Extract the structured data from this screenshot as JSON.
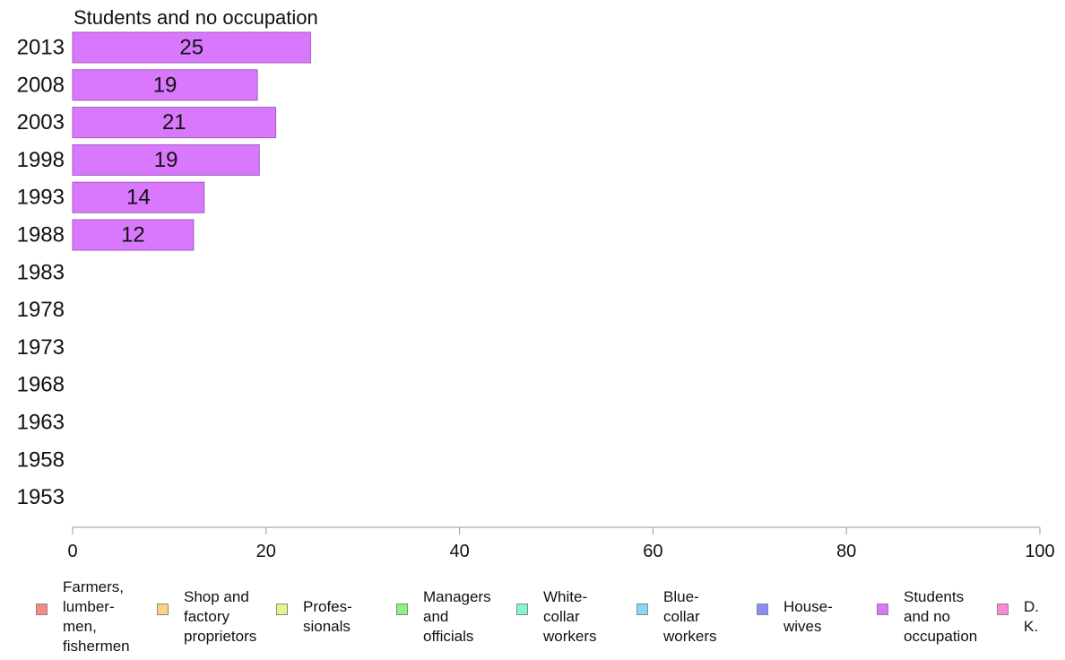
{
  "chart_data": {
    "type": "bar",
    "orientation": "horizontal",
    "title": "Students and no occupation",
    "categories": [
      "2013",
      "2008",
      "2003",
      "1998",
      "1993",
      "1988",
      "1983",
      "1978",
      "1973",
      "1968",
      "1963",
      "1958",
      "1953"
    ],
    "values": [
      24.6,
      19.1,
      21.0,
      19.3,
      13.6,
      12.5,
      null,
      null,
      null,
      null,
      null,
      null,
      null
    ],
    "data_labels": [
      "25",
      "19",
      "21",
      "19",
      "14",
      "12",
      "",
      "",
      "",
      "",
      "",
      "",
      ""
    ],
    "bar_color": "#d978fc",
    "xlim": [
      0,
      100
    ],
    "xticks": [
      0,
      20,
      40,
      60,
      80,
      100
    ],
    "grid": false,
    "legend_position": "bottom",
    "legend": [
      {
        "label": "Farmers,\nlumber-\nmen,\nfishermen",
        "color": "#f88b86"
      },
      {
        "label": "Shop and\nfactory\nproprietors",
        "color": "#fcd383"
      },
      {
        "label": "Profes-\nsionals",
        "color": "#e2f98a"
      },
      {
        "label": "Managers\nand\nofficials",
        "color": "#8cf281"
      },
      {
        "label": "White-\ncollar\nworkers",
        "color": "#84f5d6"
      },
      {
        "label": "Blue-collar\nworkers",
        "color": "#86d8fb"
      },
      {
        "label": "House-\nwives",
        "color": "#8a8cf7"
      },
      {
        "label": "Students\nand no\noccupation",
        "color": "#d978fc"
      },
      {
        "label": "D. K.",
        "color": "#f88ad8"
      }
    ]
  }
}
